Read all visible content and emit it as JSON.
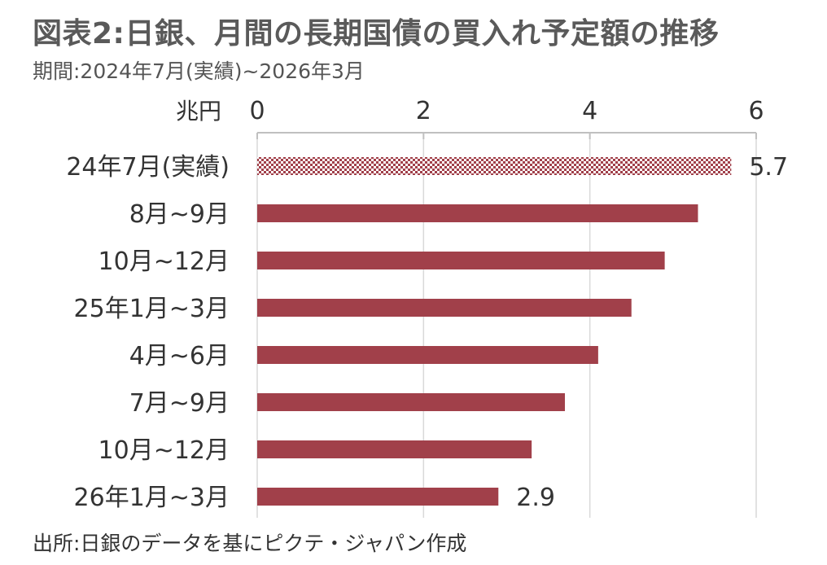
{
  "header": {
    "title": "図表2:日銀、月間の長期国債の買入れ予定額の推移",
    "subtitle": "期間:2024年7月(実績)~2026年3月"
  },
  "footer": {
    "source": "出所:日銀のデータを基にピクテ・ジャパン作成"
  },
  "chart_data": {
    "type": "bar",
    "orientation": "horizontal",
    "unit_label": "兆円",
    "xlim": [
      0,
      6
    ],
    "x_ticks": [
      "0",
      "2",
      "4",
      "6"
    ],
    "categories": [
      "24年7月(実績)",
      "8月~9月",
      "10月~12月",
      "25年1月~3月",
      "4月~6月",
      "7月~9月",
      "10月~12月",
      "26年1月~3月"
    ],
    "values": [
      5.7,
      5.3,
      4.9,
      4.5,
      4.1,
      3.7,
      3.3,
      2.9
    ],
    "data_labels": [
      "5.7",
      "",
      "",
      "",
      "",
      "",
      "",
      "2.9"
    ],
    "bar_styles": [
      "pattern",
      "solid",
      "solid",
      "solid",
      "solid",
      "solid",
      "solid",
      "solid"
    ],
    "grid": true,
    "legend": "none",
    "colors": {
      "bar": "#a1404a",
      "axis": "#c0c0c0",
      "grid": "#d9d9d9"
    }
  }
}
